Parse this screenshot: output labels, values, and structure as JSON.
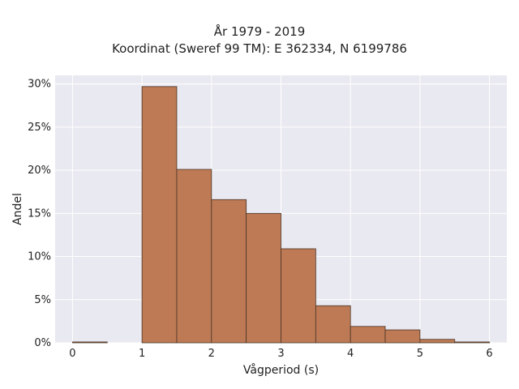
{
  "chart_data": {
    "type": "bar",
    "title": "År 1979 - 2019",
    "subtitle": "Koordinat (Sweref 99 TM): E 362334, N 6199786",
    "xlabel": "Vågperiod (s)",
    "ylabel": "Andel",
    "xlim": [
      -0.25,
      6.25
    ],
    "ylim": [
      0,
      31
    ],
    "x_ticks": [
      0,
      1,
      2,
      3,
      4,
      5,
      6
    ],
    "y_ticks": [
      0,
      5,
      10,
      15,
      20,
      25,
      30
    ],
    "y_tick_suffix": "%",
    "grid": true,
    "bin_width": 0.5,
    "bins": [
      {
        "start": 0.0,
        "end": 0.5,
        "value": 0.1
      },
      {
        "start": 0.5,
        "end": 1.0,
        "value": 0.0
      },
      {
        "start": 1.0,
        "end": 1.5,
        "value": 29.7
      },
      {
        "start": 1.5,
        "end": 2.0,
        "value": 20.1
      },
      {
        "start": 2.0,
        "end": 2.5,
        "value": 16.6
      },
      {
        "start": 2.5,
        "end": 3.0,
        "value": 15.0
      },
      {
        "start": 3.0,
        "end": 3.5,
        "value": 10.9
      },
      {
        "start": 3.5,
        "end": 4.0,
        "value": 4.3
      },
      {
        "start": 4.0,
        "end": 4.5,
        "value": 1.9
      },
      {
        "start": 4.5,
        "end": 5.0,
        "value": 1.5
      },
      {
        "start": 5.0,
        "end": 5.5,
        "value": 0.4
      },
      {
        "start": 5.5,
        "end": 6.0,
        "value": 0.1
      }
    ],
    "colors": {
      "bar_fill": "#bd7a55",
      "bar_edge": "#4a3426",
      "plot_background": "#e9e9f1",
      "grid": "#ffffff"
    }
  }
}
